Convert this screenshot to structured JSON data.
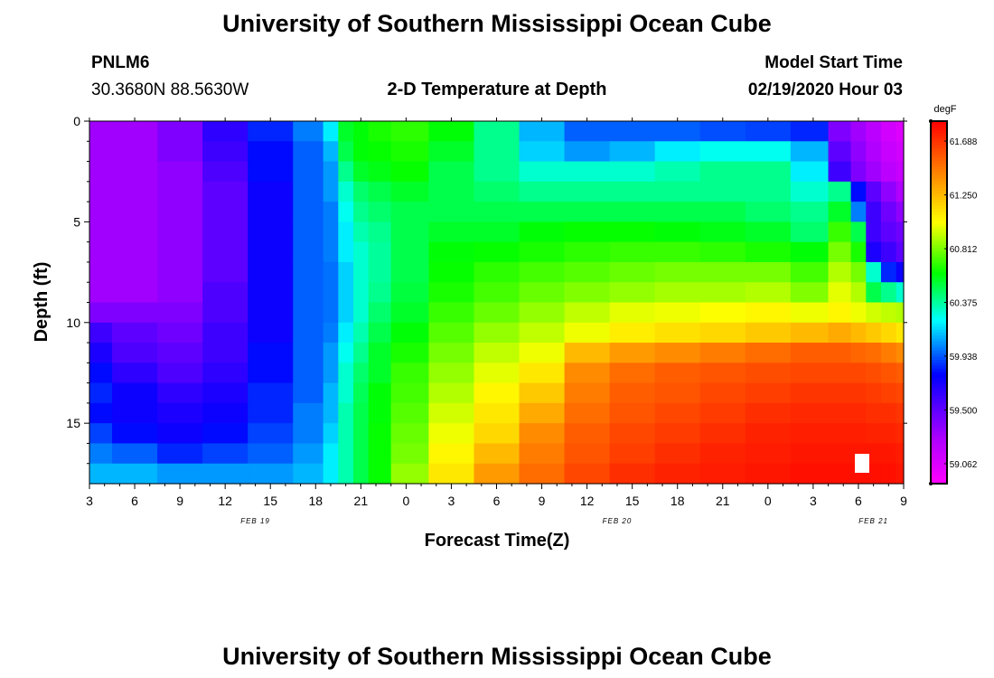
{
  "header": {
    "title": "University of Southern Mississippi Ocean Cube",
    "station": "PNLM6",
    "coords": "30.3680N 88.5630W",
    "subtitle": "2-D Temperature at Depth",
    "model_label": "Model Start Time",
    "model_time": "02/19/2020 Hour 03"
  },
  "footer": {
    "title": "University of Southern Mississippi Ocean Cube"
  },
  "colors": {
    "magenta": "#ff00ff",
    "purple": "#b000ff",
    "blue": "#0000ff",
    "cyan": "#00ffff",
    "green": "#00ff00",
    "yellow": "#ffff00",
    "orange": "#ff8000",
    "red": "#ff0000"
  },
  "chart_data": {
    "type": "heatmap",
    "title": "2-D Temperature at Depth",
    "xlabel": "Forecast Time(Z)",
    "ylabel": "Depth (ft)",
    "x_tick_labels": [
      "3",
      "6",
      "9",
      "12",
      "15",
      "18",
      "21",
      "0",
      "3",
      "6",
      "9",
      "12",
      "15",
      "18",
      "21",
      "0",
      "3",
      "6",
      "9"
    ],
    "x_date_labels": [
      {
        "text": "FEB 19",
        "at_hour": 11
      },
      {
        "text": "FEB 20",
        "at_hour": 35
      },
      {
        "text": "FEB 21",
        "at_hour": 52
      }
    ],
    "x_hours_range": [
      0,
      54
    ],
    "y_ticks": [
      0,
      5,
      10,
      15
    ],
    "y_range": [
      0,
      18
    ],
    "colorbar": {
      "unit": "degF",
      "ticks": [
        "61.688",
        "61.250",
        "60.812",
        "60.375",
        "59.938",
        "59.500",
        "59.062"
      ],
      "tick_values": [
        61.688,
        61.25,
        60.812,
        60.375,
        59.938,
        59.5,
        59.062
      ],
      "vmin": 58.9,
      "vmax": 61.85
    },
    "depth_levels_ft": [
      0.5,
      1.5,
      2.5,
      3.5,
      4.5,
      5.5,
      6.5,
      7.5,
      8.5,
      9.5,
      10.5,
      11.5,
      12.5,
      13.5,
      14.5,
      15.5,
      16.5,
      17.5
    ],
    "time_hours": [
      0,
      3,
      6,
      9,
      12,
      15,
      16,
      17,
      18,
      19,
      21,
      24,
      27,
      30,
      33,
      36,
      39,
      42,
      45,
      48,
      50,
      51,
      52,
      53,
      54
    ],
    "temperature_degF": [
      [
        59.3,
        59.3,
        59.4,
        59.65,
        59.85,
        60.0,
        60.2,
        60.55,
        60.6,
        60.65,
        60.68,
        60.6,
        60.4,
        60.1,
        59.95,
        59.95,
        59.95,
        59.92,
        59.9,
        59.85,
        59.4,
        59.3,
        59.2,
        59.1,
        59.05
      ],
      [
        59.3,
        59.3,
        59.4,
        59.6,
        59.8,
        59.95,
        60.1,
        60.5,
        60.6,
        60.62,
        60.65,
        60.55,
        60.4,
        60.15,
        60.05,
        60.1,
        60.2,
        60.25,
        60.25,
        60.1,
        59.5,
        59.35,
        59.25,
        59.15,
        59.1
      ],
      [
        59.3,
        59.3,
        59.35,
        59.55,
        59.8,
        59.95,
        60.05,
        60.4,
        60.55,
        60.58,
        60.62,
        60.5,
        60.4,
        60.3,
        60.3,
        60.3,
        60.35,
        60.4,
        60.4,
        60.2,
        59.6,
        59.4,
        59.3,
        59.2,
        59.15
      ],
      [
        59.3,
        59.3,
        59.35,
        59.5,
        59.75,
        59.95,
        60.05,
        60.3,
        60.45,
        60.5,
        60.55,
        60.5,
        60.45,
        60.4,
        60.4,
        60.4,
        60.4,
        60.4,
        60.4,
        60.3,
        60.4,
        59.8,
        59.5,
        59.35,
        59.25
      ],
      [
        59.3,
        59.3,
        59.35,
        59.5,
        59.75,
        59.95,
        60.0,
        60.25,
        60.4,
        60.45,
        60.5,
        60.5,
        60.5,
        60.5,
        60.5,
        60.5,
        60.5,
        60.5,
        60.45,
        60.4,
        60.55,
        60.0,
        59.6,
        59.45,
        59.35
      ],
      [
        59.3,
        59.3,
        59.35,
        59.5,
        59.75,
        59.95,
        60.0,
        60.2,
        60.35,
        60.4,
        60.5,
        60.55,
        60.55,
        60.6,
        60.62,
        60.62,
        60.6,
        60.58,
        60.55,
        60.45,
        60.7,
        60.5,
        59.6,
        59.5,
        59.45
      ],
      [
        59.3,
        59.3,
        59.35,
        59.5,
        59.75,
        59.95,
        60.0,
        60.2,
        60.3,
        60.38,
        60.5,
        60.6,
        60.62,
        60.65,
        60.68,
        60.7,
        60.7,
        60.68,
        60.65,
        60.6,
        60.8,
        60.65,
        59.7,
        59.6,
        59.5
      ],
      [
        59.3,
        59.3,
        59.35,
        59.5,
        59.75,
        59.95,
        59.98,
        60.15,
        60.3,
        60.38,
        60.5,
        60.62,
        60.68,
        60.72,
        60.75,
        60.78,
        60.8,
        60.8,
        60.8,
        60.72,
        60.9,
        60.8,
        60.3,
        59.85,
        59.75
      ],
      [
        59.3,
        59.3,
        59.35,
        59.55,
        59.75,
        59.95,
        59.98,
        60.15,
        60.3,
        60.4,
        60.52,
        60.65,
        60.72,
        60.78,
        60.82,
        60.85,
        60.88,
        60.88,
        60.9,
        60.82,
        60.98,
        60.9,
        60.5,
        60.4,
        60.3
      ],
      [
        59.4,
        59.4,
        59.4,
        59.55,
        59.75,
        59.95,
        59.98,
        60.15,
        60.3,
        60.45,
        60.55,
        60.7,
        60.78,
        60.85,
        60.92,
        60.98,
        61.0,
        61.02,
        61.05,
        61.0,
        61.05,
        61.0,
        60.95,
        60.92,
        60.9
      ],
      [
        59.6,
        59.5,
        59.45,
        59.6,
        59.75,
        59.95,
        60.0,
        60.2,
        60.35,
        60.5,
        60.6,
        60.75,
        60.85,
        60.92,
        61.0,
        61.08,
        61.12,
        61.15,
        61.2,
        61.25,
        61.3,
        61.25,
        61.2,
        61.15,
        61.1
      ],
      [
        59.7,
        59.55,
        59.5,
        59.6,
        59.8,
        59.95,
        60.05,
        60.25,
        60.4,
        60.55,
        60.65,
        60.8,
        60.92,
        61.0,
        61.25,
        61.35,
        61.4,
        61.45,
        61.5,
        61.55,
        61.55,
        61.52,
        61.5,
        61.45,
        61.4
      ],
      [
        59.8,
        59.65,
        59.55,
        59.65,
        59.8,
        59.95,
        60.05,
        60.3,
        60.45,
        60.55,
        60.7,
        60.85,
        60.98,
        61.1,
        61.4,
        61.5,
        61.55,
        61.58,
        61.6,
        61.62,
        61.62,
        61.62,
        61.6,
        61.58,
        61.55
      ],
      [
        59.85,
        59.75,
        59.65,
        59.7,
        59.85,
        59.95,
        60.1,
        60.3,
        60.48,
        60.6,
        60.72,
        60.9,
        61.05,
        61.2,
        61.45,
        61.55,
        61.58,
        61.62,
        61.65,
        61.68,
        61.68,
        61.68,
        61.66,
        61.64,
        61.62
      ],
      [
        59.8,
        59.75,
        59.7,
        59.75,
        59.85,
        60.0,
        60.1,
        60.35,
        60.5,
        60.6,
        60.75,
        60.95,
        61.1,
        61.3,
        61.5,
        61.58,
        61.62,
        61.66,
        61.7,
        61.72,
        61.72,
        61.72,
        61.7,
        61.7,
        61.68
      ],
      [
        59.9,
        59.8,
        59.75,
        59.8,
        59.9,
        60.0,
        60.15,
        60.35,
        60.5,
        60.62,
        60.78,
        61.0,
        61.15,
        61.4,
        61.55,
        61.62,
        61.66,
        61.7,
        61.74,
        61.75,
        61.75,
        61.75,
        61.74,
        61.74,
        61.72
      ],
      [
        60.0,
        59.95,
        59.85,
        59.9,
        59.95,
        60.05,
        60.2,
        60.35,
        60.5,
        60.62,
        60.8,
        61.05,
        61.25,
        61.45,
        61.58,
        61.65,
        61.7,
        61.74,
        61.76,
        61.78,
        61.78,
        61.78,
        61.78,
        61.78,
        61.76
      ],
      [
        60.1,
        60.1,
        60.05,
        60.05,
        60.05,
        60.1,
        60.2,
        60.35,
        60.5,
        60.62,
        60.85,
        61.1,
        61.35,
        61.5,
        61.62,
        61.7,
        61.74,
        61.76,
        61.78,
        61.8,
        61.8,
        61.8,
        61.8,
        61.8,
        61.78
      ]
    ],
    "grid": false
  }
}
